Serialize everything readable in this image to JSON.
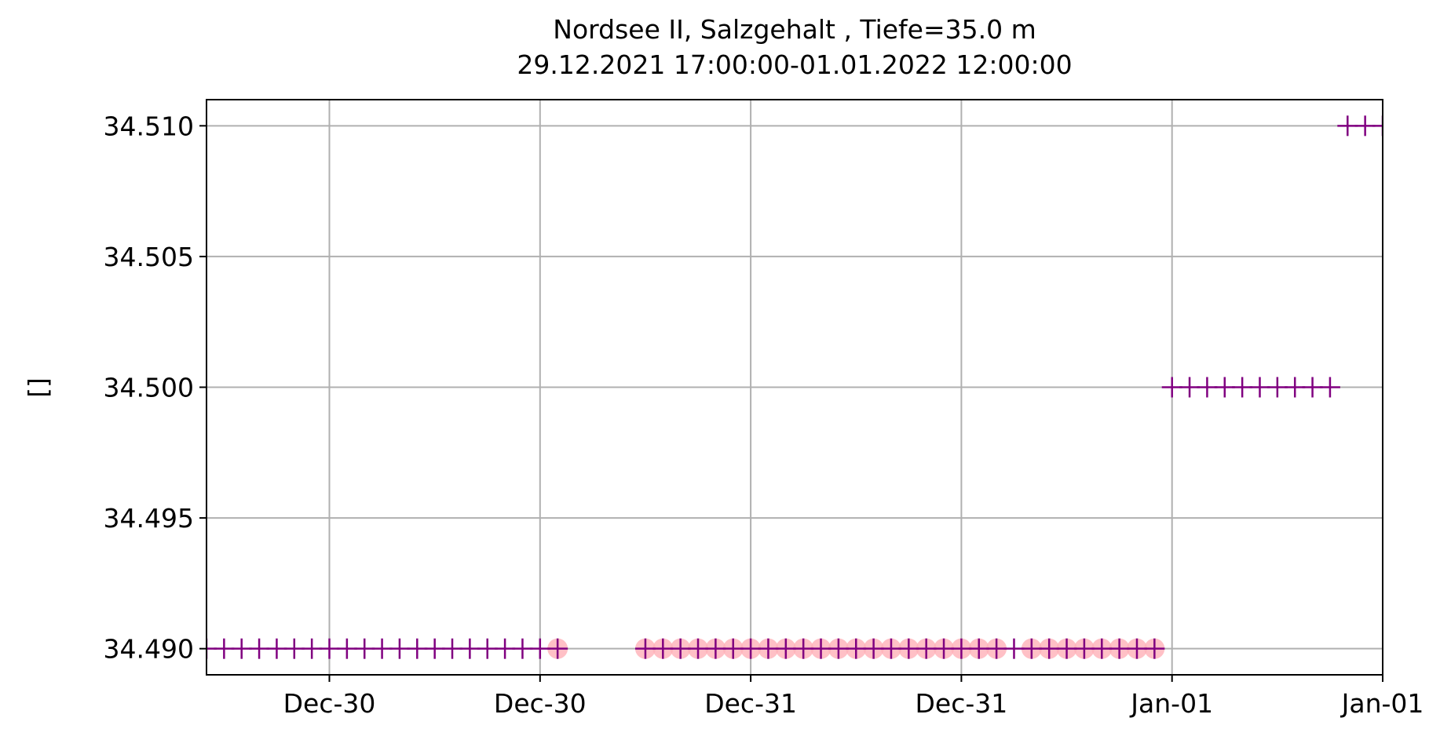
{
  "chart_data": {
    "type": "scatter",
    "title": "Nordsee II, Salzgehalt , Tiefe=35.0 m",
    "subtitle": "29.12.2021 17:00:00-01.01.2022 12:00:00",
    "y_label": "[]",
    "categories": [
      null,
      null,
      null,
      null,
      null,
      null,
      null,
      "Dec-30",
      null,
      null,
      null,
      null,
      null,
      null,
      null,
      null,
      null,
      null,
      null,
      "Dec-30",
      null,
      null,
      null,
      null,
      null,
      null,
      null,
      null,
      null,
      null,
      null,
      "Dec-31",
      null,
      null,
      null,
      null,
      null,
      null,
      null,
      null,
      null,
      null,
      null,
      "Dec-31",
      null,
      null,
      null,
      null,
      null,
      null,
      null,
      null,
      null,
      null,
      null,
      "Jan-01",
      null,
      null,
      null,
      null,
      null,
      null,
      null,
      null,
      null,
      null,
      null,
      "Jan-01"
    ],
    "series": [
      {
        "color": "#ffb0b8",
        "marker": "circle",
        "values": [
          null,
          null,
          null,
          null,
          null,
          null,
          null,
          null,
          null,
          null,
          null,
          null,
          null,
          null,
          null,
          null,
          null,
          null,
          null,
          null,
          34.49,
          null,
          null,
          null,
          null,
          34.49,
          34.49,
          34.49,
          34.49,
          34.49,
          34.49,
          34.49,
          34.49,
          34.49,
          34.49,
          34.49,
          34.49,
          34.49,
          34.49,
          34.49,
          34.49,
          34.49,
          34.49,
          34.49,
          34.49,
          34.49,
          null,
          34.49,
          34.49,
          34.49,
          34.49,
          34.49,
          34.49,
          34.49,
          34.49,
          null,
          null,
          null,
          null,
          null,
          null,
          null,
          null,
          null,
          null,
          null,
          null,
          null
        ]
      },
      {
        "color": "#800080",
        "marker": "plus",
        "values": [
          34.49,
          34.49,
          34.49,
          34.49,
          34.49,
          34.49,
          34.49,
          34.49,
          34.49,
          34.49,
          34.49,
          34.49,
          34.49,
          34.49,
          34.49,
          34.49,
          34.49,
          34.49,
          34.49,
          34.49,
          34.49,
          null,
          null,
          null,
          null,
          34.49,
          34.49,
          34.49,
          34.49,
          34.49,
          34.49,
          34.49,
          34.49,
          34.49,
          34.49,
          34.49,
          34.49,
          34.49,
          34.49,
          34.49,
          34.49,
          34.49,
          34.49,
          34.49,
          34.49,
          34.49,
          34.49,
          34.49,
          34.49,
          34.49,
          34.49,
          34.49,
          34.49,
          34.49,
          34.49,
          34.5,
          34.5,
          34.5,
          34.5,
          34.5,
          34.5,
          34.5,
          34.5,
          34.5,
          34.5,
          34.51,
          34.51,
          34.51
        ]
      }
    ],
    "ylim": [
      34.489,
      34.511
    ],
    "yticks": [
      {
        "value": 34.49,
        "label": "34.490"
      },
      {
        "value": 34.495,
        "label": "34.495"
      },
      {
        "value": 34.5,
        "label": "34.500"
      },
      {
        "value": 34.505,
        "label": "34.505"
      },
      {
        "value": 34.51,
        "label": "34.510"
      }
    ],
    "grid": true
  }
}
